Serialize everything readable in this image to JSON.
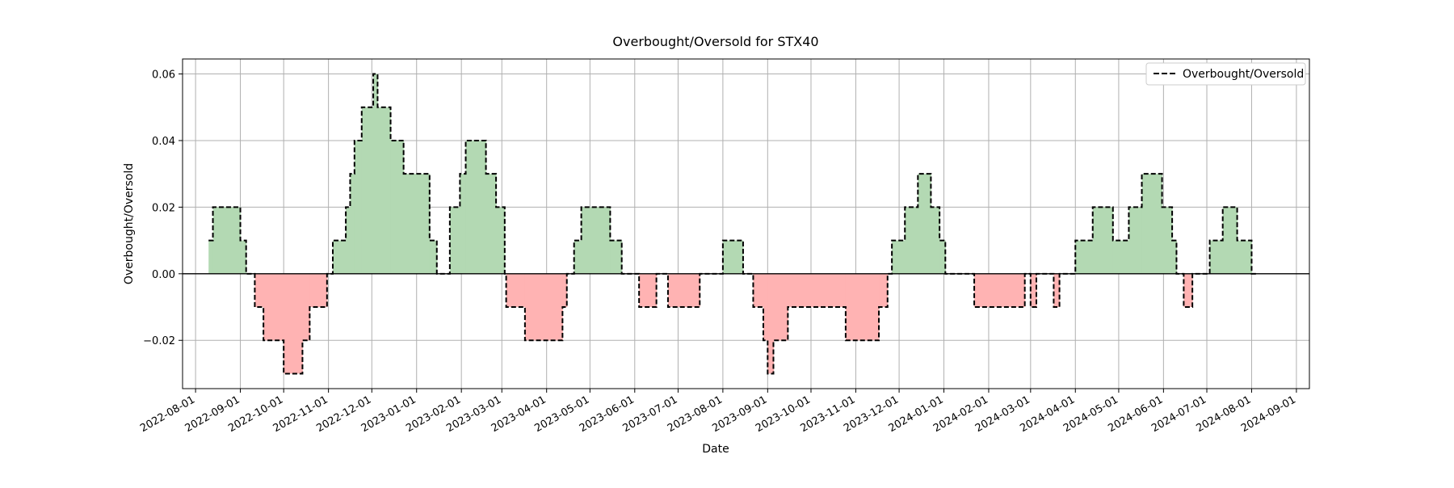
{
  "chart_data": {
    "type": "area",
    "title": "Overbought/Oversold for STX40",
    "xlabel": "Date",
    "ylabel": "Overbought/Oversold",
    "xlim": [
      "2022-07-23",
      "2024-09-10"
    ],
    "ylim": [
      -0.0345,
      0.0645
    ],
    "x_ticks": [
      "2022-08-01",
      "2022-09-01",
      "2022-10-01",
      "2022-11-01",
      "2022-12-01",
      "2023-01-01",
      "2023-02-01",
      "2023-03-01",
      "2023-04-01",
      "2023-05-01",
      "2023-06-01",
      "2023-07-01",
      "2023-08-01",
      "2023-09-01",
      "2023-10-01",
      "2023-11-01",
      "2023-12-01",
      "2024-01-01",
      "2024-02-01",
      "2024-03-01",
      "2024-04-01",
      "2024-05-01",
      "2024-06-01",
      "2024-07-01",
      "2024-08-01",
      "2024-09-01"
    ],
    "y_ticks": [
      -0.02,
      0.0,
      0.02,
      0.04,
      0.06
    ],
    "y_tick_labels": [
      "−0.02",
      "0.00",
      "0.02",
      "0.04",
      "0.06"
    ],
    "grid": true,
    "legend": {
      "position": "upper right",
      "entries": [
        "Overbought/Oversold"
      ]
    },
    "colors": {
      "positive_fill": "#b3d9b3",
      "negative_fill": "#ffb3b3",
      "line": "#000000",
      "zero_line": "#000000",
      "grid": "#b0b0b0"
    },
    "series": [
      {
        "name": "Overbought/Oversold",
        "style": "dashed-step",
        "points": [
          [
            "2022-08-10",
            0.01
          ],
          [
            "2022-08-13",
            0.02
          ],
          [
            "2022-09-01",
            0.01
          ],
          [
            "2022-09-05",
            0.0
          ],
          [
            "2022-09-11",
            -0.01
          ],
          [
            "2022-09-17",
            -0.02
          ],
          [
            "2022-10-01",
            -0.03
          ],
          [
            "2022-10-14",
            -0.02
          ],
          [
            "2022-10-19",
            -0.01
          ],
          [
            "2022-10-31",
            0.0
          ],
          [
            "2022-11-04",
            0.01
          ],
          [
            "2022-11-13",
            0.02
          ],
          [
            "2022-11-16",
            0.03
          ],
          [
            "2022-11-19",
            0.04
          ],
          [
            "2022-11-24",
            0.05
          ],
          [
            "2022-12-02",
            0.06
          ],
          [
            "2022-12-05",
            0.05
          ],
          [
            "2022-12-14",
            0.04
          ],
          [
            "2022-12-23",
            0.03
          ],
          [
            "2023-01-10",
            0.01
          ],
          [
            "2023-01-15",
            0.0
          ],
          [
            "2023-01-18",
            0.0
          ],
          [
            "2023-01-24",
            0.02
          ],
          [
            "2023-01-31",
            0.03
          ],
          [
            "2023-02-04",
            0.04
          ],
          [
            "2023-02-18",
            0.03
          ],
          [
            "2023-02-25",
            0.02
          ],
          [
            "2023-03-03",
            0.0
          ],
          [
            "2023-03-04",
            -0.01
          ],
          [
            "2023-03-17",
            -0.02
          ],
          [
            "2023-04-12",
            -0.01
          ],
          [
            "2023-04-15",
            0.0
          ],
          [
            "2023-04-20",
            0.01
          ],
          [
            "2023-04-25",
            0.02
          ],
          [
            "2023-05-15",
            0.01
          ],
          [
            "2023-05-23",
            0.0
          ],
          [
            "2023-06-01",
            0.0
          ],
          [
            "2023-06-04",
            -0.01
          ],
          [
            "2023-06-16",
            0.0
          ],
          [
            "2023-06-24",
            -0.01
          ],
          [
            "2023-07-16",
            0.0
          ],
          [
            "2023-08-01",
            0.01
          ],
          [
            "2023-08-15",
            0.0
          ],
          [
            "2023-08-22",
            -0.01
          ],
          [
            "2023-08-29",
            -0.02
          ],
          [
            "2023-09-01",
            -0.03
          ],
          [
            "2023-09-05",
            -0.02
          ],
          [
            "2023-09-15",
            -0.01
          ],
          [
            "2023-10-25",
            -0.02
          ],
          [
            "2023-11-17",
            -0.01
          ],
          [
            "2023-11-23",
            0.0
          ],
          [
            "2023-11-26",
            0.01
          ],
          [
            "2023-12-05",
            0.02
          ],
          [
            "2023-12-14",
            0.03
          ],
          [
            "2023-12-23",
            0.02
          ],
          [
            "2023-12-29",
            0.01
          ],
          [
            "2024-01-02",
            0.0
          ],
          [
            "2024-01-20",
            0.0
          ],
          [
            "2024-01-22",
            -0.01
          ],
          [
            "2024-02-26",
            0.0
          ],
          [
            "2024-03-01",
            -0.01
          ],
          [
            "2024-03-05",
            0.0
          ],
          [
            "2024-03-17",
            -0.01
          ],
          [
            "2024-03-21",
            0.0
          ],
          [
            "2024-04-01",
            0.01
          ],
          [
            "2024-04-13",
            0.02
          ],
          [
            "2024-04-27",
            0.01
          ],
          [
            "2024-05-08",
            0.02
          ],
          [
            "2024-05-17",
            0.03
          ],
          [
            "2024-05-31",
            0.02
          ],
          [
            "2024-06-07",
            0.01
          ],
          [
            "2024-06-10",
            0.0
          ],
          [
            "2024-06-15",
            -0.01
          ],
          [
            "2024-06-21",
            0.0
          ],
          [
            "2024-06-28",
            0.0
          ],
          [
            "2024-07-03",
            0.01
          ],
          [
            "2024-07-12",
            0.02
          ],
          [
            "2024-07-22",
            0.01
          ],
          [
            "2024-08-01",
            0.0
          ],
          [
            "2024-08-04",
            0.0
          ]
        ]
      }
    ]
  }
}
